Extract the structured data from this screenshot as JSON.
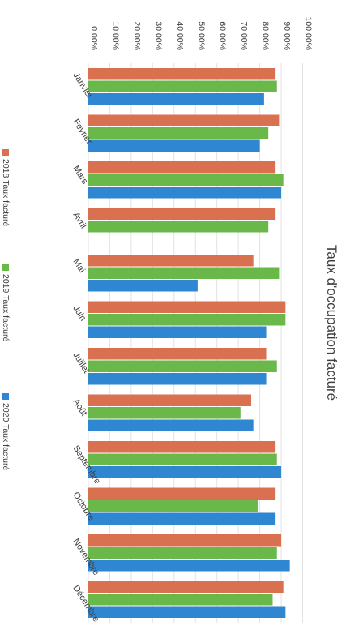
{
  "chart_data": {
    "type": "bar",
    "orientation": "horizontal",
    "title": "Taux d'occupation facturé",
    "xlabel": "",
    "ylabel": "",
    "xlim": [
      0,
      100
    ],
    "tick_labels": [
      "0,00%",
      "10,00%",
      "20,00%",
      "30,00%",
      "40,00%",
      "50,00%",
      "60,00%",
      "70,00%",
      "80,00%",
      "90,00%",
      "100,00%"
    ],
    "grid": true,
    "legend_position": "bottom",
    "categories": [
      "Janvier",
      "Fevrier",
      "Mars",
      "Avril",
      "Mai",
      "Juin",
      "Juillet",
      "Août",
      "Septembre",
      "Octobre",
      "Novembre",
      "Décembre"
    ],
    "series": [
      {
        "name": "2018 Taux facturé",
        "color": "#d9704f",
        "values": [
          87,
          89,
          87,
          87,
          77,
          92,
          83,
          76,
          87,
          87,
          90,
          91
        ]
      },
      {
        "name": "2019 Taux facturé",
        "color": "#6bb84a",
        "values": [
          88,
          84,
          91,
          84,
          89,
          92,
          88,
          71,
          88,
          79,
          88,
          86
        ]
      },
      {
        "name": "2020 Taux facturé",
        "color": "#2f86d1",
        "values": [
          82,
          80,
          90,
          null,
          51,
          83,
          83,
          77,
          90,
          87,
          94,
          92
        ]
      }
    ]
  }
}
